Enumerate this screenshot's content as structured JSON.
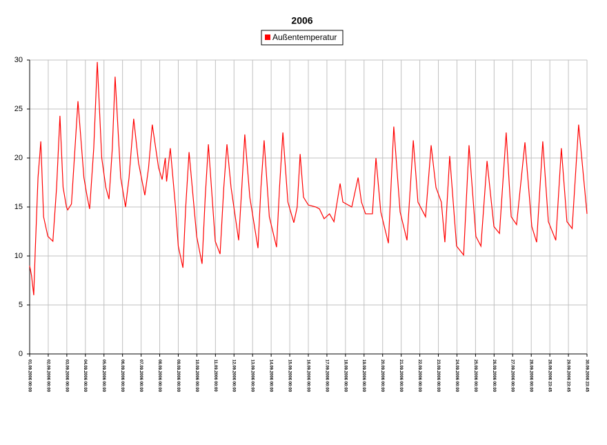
{
  "chart_data": {
    "type": "line",
    "title": "2006",
    "x": [
      0,
      0.1,
      0.22,
      0.3,
      0.45,
      0.6,
      0.75,
      0.98,
      1.25,
      1.45,
      1.63,
      1.8,
      1.98,
      2.05,
      2.25,
      2.6,
      2.92,
      3.1,
      3.23,
      3.45,
      3.64,
      3.88,
      4.1,
      4.27,
      4.45,
      4.6,
      4.9,
      5.16,
      5.35,
      5.6,
      5.86,
      6.2,
      6.4,
      6.6,
      6.94,
      7.13,
      7.3,
      7.37,
      7.57,
      7.85,
      8.0,
      8.25,
      8.4,
      8.58,
      8.99,
      9.28,
      9.45,
      9.62,
      9.99,
      10.25,
      10.45,
      10.62,
      10.84,
      11.25,
      11.42,
      11.58,
      11.85,
      12.29,
      12.45,
      12.62,
      12.9,
      13.29,
      13.45,
      13.63,
      13.9,
      14.22,
      14.4,
      14.56,
      14.74,
      15.0,
      15.4,
      15.6,
      15.85,
      16.14,
      16.38,
      16.71,
      16.86,
      17.34,
      17.68,
      17.86,
      18.08,
      18.45,
      18.64,
      18.9,
      19.31,
      19.6,
      19.94,
      20.31,
      20.65,
      20.9,
      21.31,
      21.61,
      21.87,
      22.16,
      22.35,
      22.61,
      22.98,
      23.36,
      23.65,
      24.02,
      24.29,
      24.62,
      24.99,
      25.29,
      25.65,
      25.92,
      26.21,
      26.66,
      27.03,
      27.29,
      27.62,
      27.92,
      28.32,
      28.62,
      28.92,
      29.2,
      29.55,
      30
    ],
    "series": [
      {
        "name": "Außentemperatur",
        "color": "#ff0000",
        "values": [
          9,
          8,
          6,
          10.5,
          18,
          21.7,
          14,
          12,
          11.5,
          17,
          24.3,
          17,
          15,
          14.7,
          15.3,
          25.8,
          18,
          16,
          14.8,
          21,
          29.8,
          20,
          17,
          15.8,
          21,
          28.3,
          18,
          15,
          18,
          24,
          19.5,
          16.2,
          19,
          23.4,
          19,
          17.8,
          20,
          17.6,
          21,
          15,
          11,
          8.8,
          15,
          20.6,
          12,
          9.2,
          16,
          21.4,
          11.5,
          10.2,
          17,
          21.4,
          17,
          11.6,
          17,
          22.4,
          16,
          10.8,
          17,
          21.8,
          14,
          10.9,
          17,
          22.6,
          15.5,
          13.4,
          15,
          20.4,
          16,
          15.2,
          15,
          14.8,
          13.8,
          14.3,
          13.5,
          17.4,
          15.5,
          15,
          18,
          15.5,
          14.3,
          14.3,
          20,
          14.5,
          11.3,
          23.2,
          14.5,
          11.6,
          21.8,
          15.5,
          14,
          21.3,
          17,
          15.5,
          11.4,
          20.2,
          11,
          10.1,
          21.3,
          12,
          11,
          19.7,
          13,
          12.3,
          22.6,
          14,
          13.2,
          21.6,
          13,
          11.4,
          21.7,
          13.5,
          11.6,
          21,
          13.5,
          12.8,
          23.4,
          14.3
        ]
      }
    ],
    "xlim": [
      0,
      30
    ],
    "xticks": [
      {
        "value": 0,
        "label": "01.09.2006 00:00"
      },
      {
        "value": 1,
        "label": "02.09.2006 00:00"
      },
      {
        "value": 2,
        "label": "03.09.2006 00:00"
      },
      {
        "value": 3,
        "label": "04.09.2006 00:00"
      },
      {
        "value": 4,
        "label": "05.09.2006 00:00"
      },
      {
        "value": 5,
        "label": "06.09.2006 00:00"
      },
      {
        "value": 6,
        "label": "07.09.2006 00:00"
      },
      {
        "value": 7,
        "label": "08.09.2006 00:00"
      },
      {
        "value": 8,
        "label": "09.09.2006 00:00"
      },
      {
        "value": 9,
        "label": "10.09.2006 00:00"
      },
      {
        "value": 10,
        "label": "11.09.2006 00:00"
      },
      {
        "value": 11,
        "label": "12.09.2006 00:00"
      },
      {
        "value": 12,
        "label": "13.09.2006 00:00"
      },
      {
        "value": 13,
        "label": "14.09.2006 00:00"
      },
      {
        "value": 14,
        "label": "15.09.2006 00:00"
      },
      {
        "value": 15,
        "label": "16.09.2006 00:00"
      },
      {
        "value": 16,
        "label": "17.09.2006 00:00"
      },
      {
        "value": 17,
        "label": "18.09.2006 00:00"
      },
      {
        "value": 18,
        "label": "19.09.2006 00:00"
      },
      {
        "value": 19,
        "label": "20.09.2006 00:00"
      },
      {
        "value": 20,
        "label": "21.09.2006 00:00"
      },
      {
        "value": 21,
        "label": "22.09.2006 00:00"
      },
      {
        "value": 22,
        "label": "23.09.2006 00:00"
      },
      {
        "value": 23,
        "label": "24.09.2006 00:00"
      },
      {
        "value": 24,
        "label": "25.09.2006 00:00"
      },
      {
        "value": 25,
        "label": "26.09.2006 00:00"
      },
      {
        "value": 26,
        "label": "27.09.2006 00:00"
      },
      {
        "value": 27,
        "label": "28.09.2006 00:00"
      },
      {
        "value": 28,
        "label": "28.09.2006 23:45"
      },
      {
        "value": 29,
        "label": "29.09.2006 23:45"
      },
      {
        "value": 30,
        "label": "30.09.2006 23:45"
      }
    ],
    "ylim": [
      0,
      30
    ],
    "yticks": [
      0,
      5,
      10,
      15,
      20,
      25,
      30
    ],
    "grid": true,
    "legend": "top"
  }
}
